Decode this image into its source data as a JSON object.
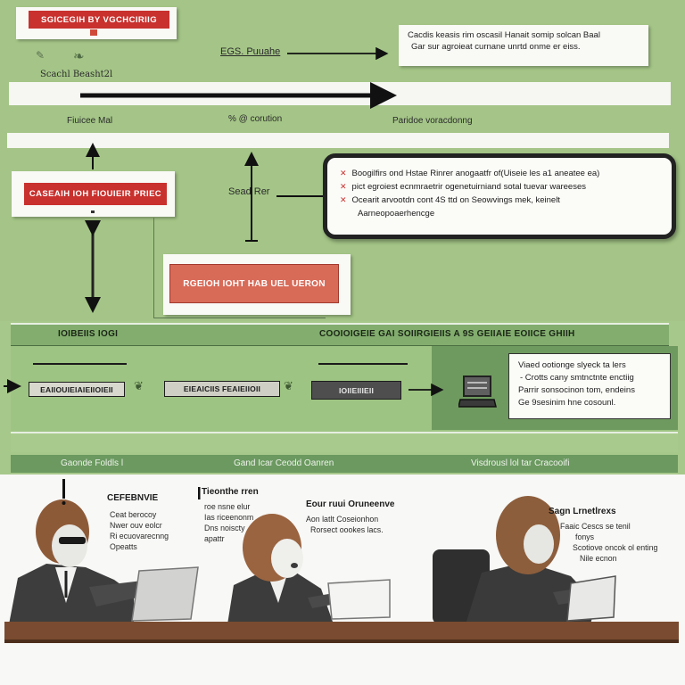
{
  "diagram": {
    "top_left_tag": "SGICEGIH BY VGCHCIRIIG",
    "top_left_note": "Scachl Beasht2l",
    "top_arrow_label": "EGS. Puuahe",
    "top_right_note": [
      "Cacdis keasis rim oscasil Hanait somip solcan Baal",
      "Gar sur agroieat curnane unrtd onme er eiss."
    ],
    "row_labels": [
      "Fiuicee Mal",
      "% @ corution",
      "Paridoe voracdonng"
    ],
    "left_tag": "CASEAIH IOH FIOUIEIR PRIEC",
    "side_label": "Sead Rer",
    "callout_items": [
      "Boogilfirs ond Hstae Rinrer anogaatfr of(Uiseie les a1 aneatee ea)",
      "pict egroiest ecnmraetrir ogenetuirniand sotal tuevar wareeses",
      "Ocearit arvootdn cont 4S ttd on Seowvings mek, keinelt",
      "Aarneopoaerhencge"
    ],
    "center_tag": "RGEIOH IOHT HAB UEL UERON"
  },
  "process": {
    "header_left": "IOIBEIIS IOGI",
    "header_right": "COOIOIGEIE GAI SOIIRGIEIIS A 9S GEIIAIE EOIICE GHIIH",
    "steps": [
      "EAIIOUIEIAIEIIOIEII",
      "EIEAICIIS FEAIEIIOII",
      "IOIIEIIIEII"
    ],
    "result_note": [
      "Viaed ootionge slyeck ta lers",
      "- Crotts cany smtnctnte enctiig",
      "Parrir sonsocinon tom, endeins",
      "Ge 9sesinim hne cosounl."
    ],
    "footer_labels": [
      "Gaonde Foldls l",
      "Gand Icar Ceodd Oanren",
      "Visdrousl lol tar Cracooifi"
    ]
  },
  "scene": {
    "captions": [
      {
        "title": "CEFEBNVIE",
        "lines": [
          "Ceat berocoy",
          "Nwer ouv eolcr",
          "Ri ecuovarecnng",
          "Opeatts"
        ]
      },
      {
        "title": "Tieonthe rren",
        "lines": [
          "roe nsne elur",
          "Ias riceenonm",
          "Dns noiscty",
          "apattr"
        ]
      },
      {
        "title": "Eour ruui Oruneenve",
        "lines": [
          "Aon latlt Coseionhon",
          "Rorsect oookes lacs."
        ]
      },
      {
        "title": "Sagn Lrnetlrexs",
        "lines": [
          "Faaic Cescs se tenil",
          "fonys",
          "Scotiove oncok ol enting",
          "Nile ecnon"
        ]
      }
    ]
  },
  "icons": {
    "leaf_scribble": "leaf-scribble-icon",
    "sprout": "sprout-icon",
    "bullet": "cross-bullet-icon",
    "laptop": "laptop-icon"
  },
  "colors": {
    "green_background": "#a4c587",
    "dark_green_panel": "#6f9a5f",
    "red_tag": "#c8312e",
    "salmon_tag": "#d86a58",
    "desk": "#7a4b30",
    "hair_brown": "#8d5e3c"
  }
}
